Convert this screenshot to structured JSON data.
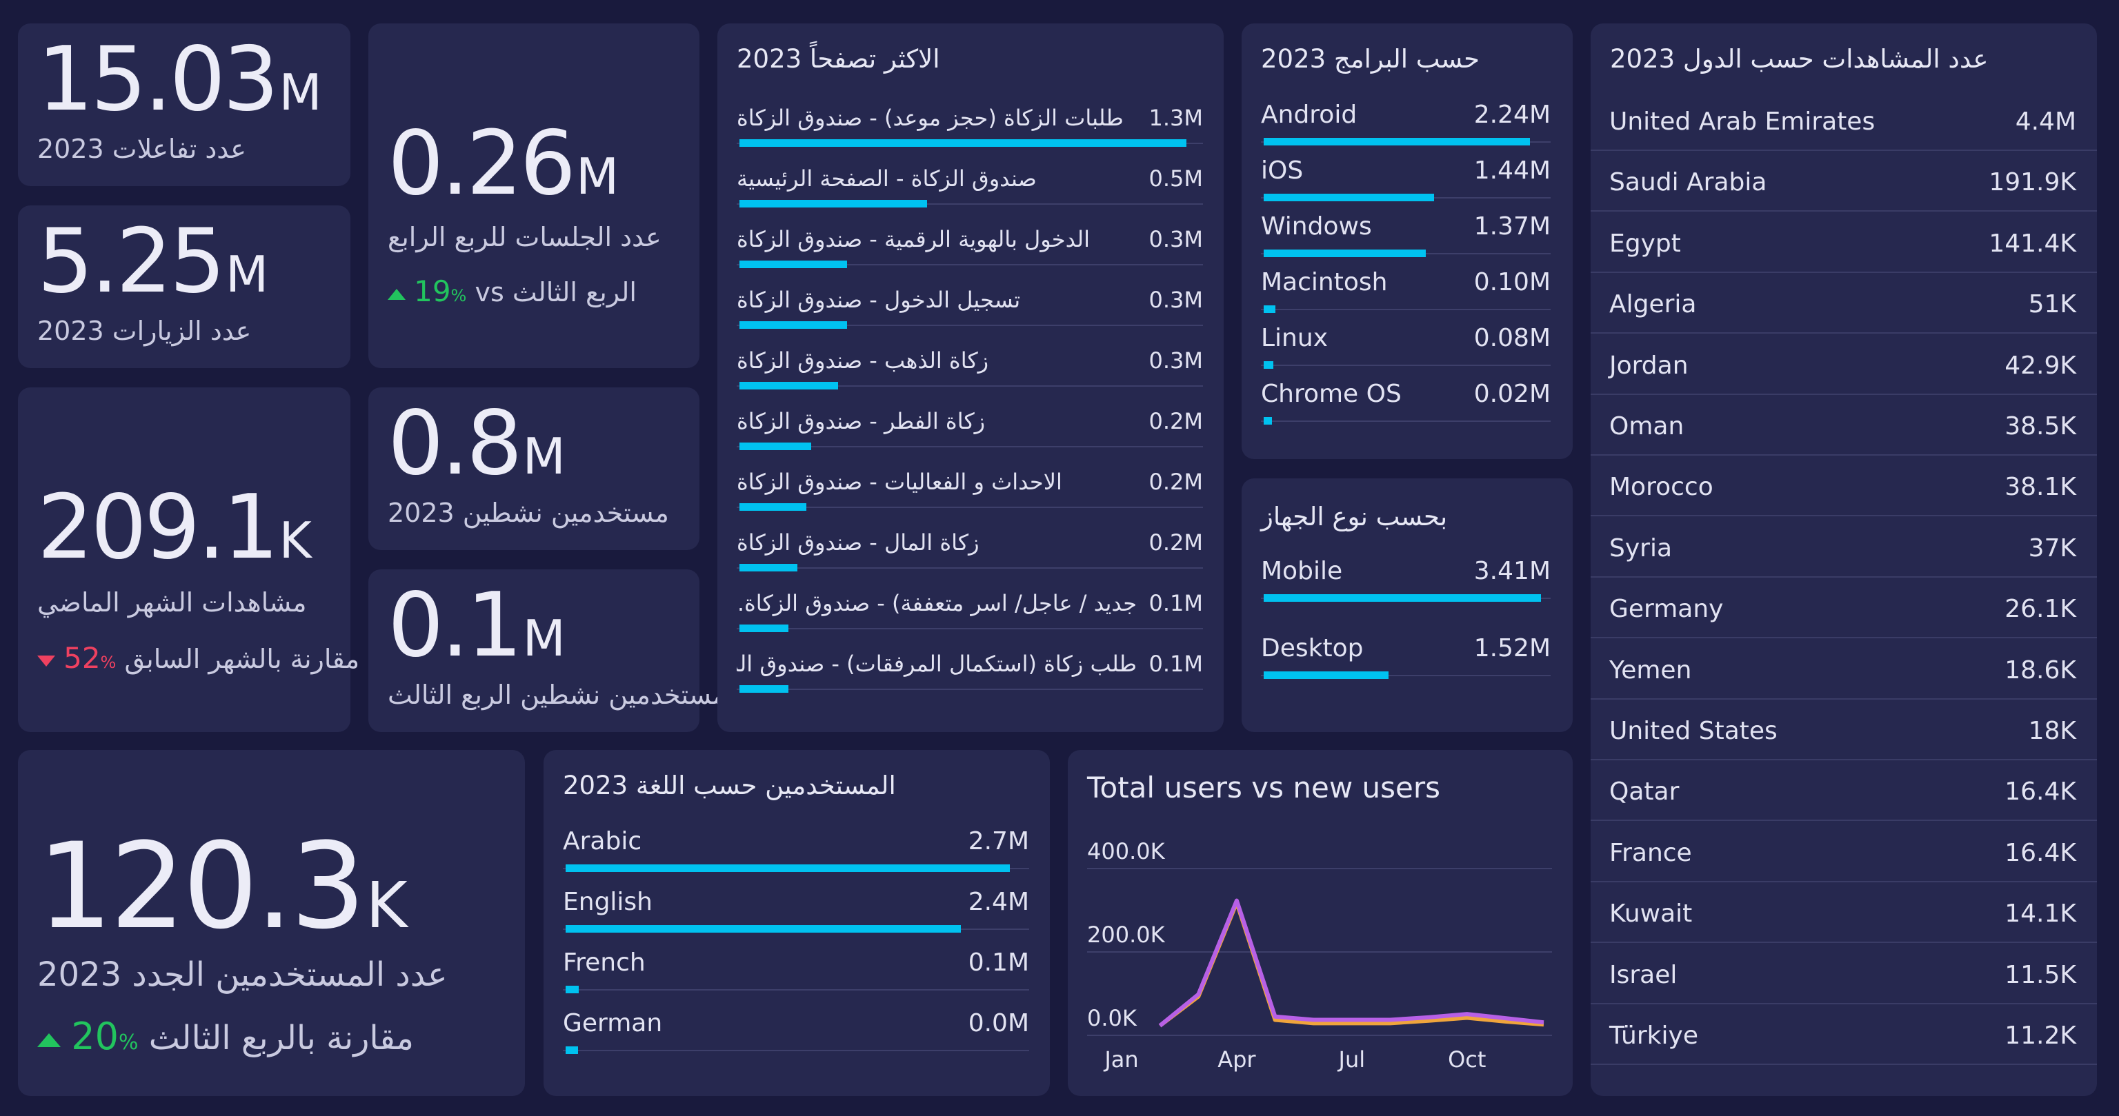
{
  "kpis": {
    "interactions": {
      "value": "15.03",
      "unit": "M",
      "label": "عدد تفاعلات 2023"
    },
    "visits": {
      "value": "5.25",
      "unit": "M",
      "label": "عدد الزيارات 2023"
    },
    "sessions_q4": {
      "value": "0.26",
      "unit": "M",
      "label": "عدد الجلسات للربع الرابع",
      "delta_value": "19",
      "delta_unit": "%",
      "delta_text": "vs الربع الثالث"
    },
    "views_last_month": {
      "value": "209.1",
      "unit": "K",
      "label": "مشاهدات الشهر الماضي",
      "delta_value": "52",
      "delta_unit": "%",
      "delta_text": "مقارنة بالشهر السابق"
    },
    "active_users": {
      "value": "0.8",
      "unit": "M",
      "label": "مستخدمين نشطين 2023"
    },
    "active_users_q3": {
      "value": "0.1",
      "unit": "M",
      "label": "مستخدمين نشطين الربع الثالث"
    },
    "new_users": {
      "value": "120.3",
      "unit": "K",
      "label": "عدد المستخدمين الجدد 2023",
      "delta_value": "20",
      "delta_unit": "%",
      "delta_text": "مقارنة بالربع الثالث"
    }
  },
  "most_browsed": {
    "title": "الاكثر تصفحاً 2023",
    "items": [
      {
        "name": "طلبات الزكاة (حجز موعد) - صندوق الزكاة",
        "value": "1.3M",
        "fraction": 1.0
      },
      {
        "name": "صندوق الزكاة - الصفحة الرئيسية",
        "value": "0.5M",
        "fraction": 0.42
      },
      {
        "name": "الدخول بالهوية الرقمية - صندوق الزكاة",
        "value": "0.3M",
        "fraction": 0.24
      },
      {
        "name": "تسجيل الدخول - صندوق الزكاة",
        "value": "0.3M",
        "fraction": 0.24
      },
      {
        "name": "زكاة الذهب - صندوق الزكاة",
        "value": "0.3M",
        "fraction": 0.22
      },
      {
        "name": "زكاة الفطر - صندوق الزكاة",
        "value": "0.2M",
        "fraction": 0.16
      },
      {
        "name": "الاحداث و الفعاليات - صندوق الزكاة",
        "value": "0.2M",
        "fraction": 0.15
      },
      {
        "name": "زكاة المال - صندوق الزكاة",
        "value": "0.2M",
        "fraction": 0.13
      },
      {
        "name": "جديد / عاجل/ اسر متعففة) - صندوق الزكاة...",
        "value": "0.1M",
        "fraction": 0.11
      },
      {
        "name": "طلب زكاة (استكمال المرفقات) - صندوق الزكاة",
        "value": "0.1M",
        "fraction": 0.11
      }
    ]
  },
  "by_program": {
    "title": "حسب البرامج 2023",
    "items": [
      {
        "name": "Android",
        "value": "2.24M",
        "fraction": 1.0
      },
      {
        "name": "iOS",
        "value": "1.44M",
        "fraction": 0.64
      },
      {
        "name": "Windows",
        "value": "1.37M",
        "fraction": 0.61
      },
      {
        "name": "Macintosh",
        "value": "0.10M",
        "fraction": 0.045
      },
      {
        "name": "Linux",
        "value": "0.08M",
        "fraction": 0.036
      },
      {
        "name": "Chrome OS",
        "value": "0.02M",
        "fraction": 0.01
      }
    ]
  },
  "by_device": {
    "title": "بحسب نوع الجهاز",
    "items": [
      {
        "name": "Mobile",
        "value": "3.41M",
        "fraction": 1.0
      },
      {
        "name": "Desktop",
        "value": "1.52M",
        "fraction": 0.45
      }
    ]
  },
  "by_country": {
    "title": "عدد المشاهدات حسب الدول 2023",
    "items": [
      {
        "name": "United Arab Emirates",
        "value": "4.4M"
      },
      {
        "name": "Saudi Arabia",
        "value": "191.9K"
      },
      {
        "name": "Egypt",
        "value": "141.4K"
      },
      {
        "name": "Algeria",
        "value": "51K"
      },
      {
        "name": "Jordan",
        "value": "42.9K"
      },
      {
        "name": "Oman",
        "value": "38.5K"
      },
      {
        "name": "Morocco",
        "value": "38.1K"
      },
      {
        "name": "Syria",
        "value": "37K"
      },
      {
        "name": "Germany",
        "value": "26.1K"
      },
      {
        "name": "Yemen",
        "value": "18.6K"
      },
      {
        "name": "United States",
        "value": "18K"
      },
      {
        "name": "Qatar",
        "value": "16.4K"
      },
      {
        "name": "France",
        "value": "16.4K"
      },
      {
        "name": "Kuwait",
        "value": "14.1K"
      },
      {
        "name": "Israel",
        "value": "11.5K"
      },
      {
        "name": "Türkiye",
        "value": "11.2K"
      }
    ]
  },
  "by_language": {
    "title": "المستخدمين حسب اللغة 2023",
    "items": [
      {
        "name": "Arabic",
        "value": "2.7M",
        "fraction": 1.0
      },
      {
        "name": "English",
        "value": "2.4M",
        "fraction": 0.89
      },
      {
        "name": "French",
        "value": "0.1M",
        "fraction": 0.03
      },
      {
        "name": "German",
        "value": "0.0M",
        "fraction": 0.0
      }
    ]
  },
  "chart_data": {
    "type": "line",
    "title": "Total users vs new users",
    "x": [
      1,
      2,
      3,
      4,
      5,
      6,
      7,
      8,
      9,
      10,
      11,
      12
    ],
    "x_tick_labels": {
      "1": "Jan",
      "4": "Apr",
      "7": "Jul",
      "10": "Oct"
    },
    "ylim": [
      0,
      400000
    ],
    "y_ticks": [
      0,
      200000,
      400000
    ],
    "y_tick_labels": [
      "0.0K",
      "200.0K",
      "400.0K"
    ],
    "series": [
      {
        "color": "#b760e6",
        "values": [
          null,
          0,
          75000,
          300000,
          22000,
          14000,
          14000,
          14000,
          20000,
          28000,
          18000,
          8000
        ]
      },
      {
        "color": "#f0a53c",
        "values": [
          null,
          0,
          70000,
          295000,
          14000,
          6000,
          6000,
          6000,
          12000,
          19000,
          10000,
          3000
        ]
      }
    ],
    "grid": true
  }
}
